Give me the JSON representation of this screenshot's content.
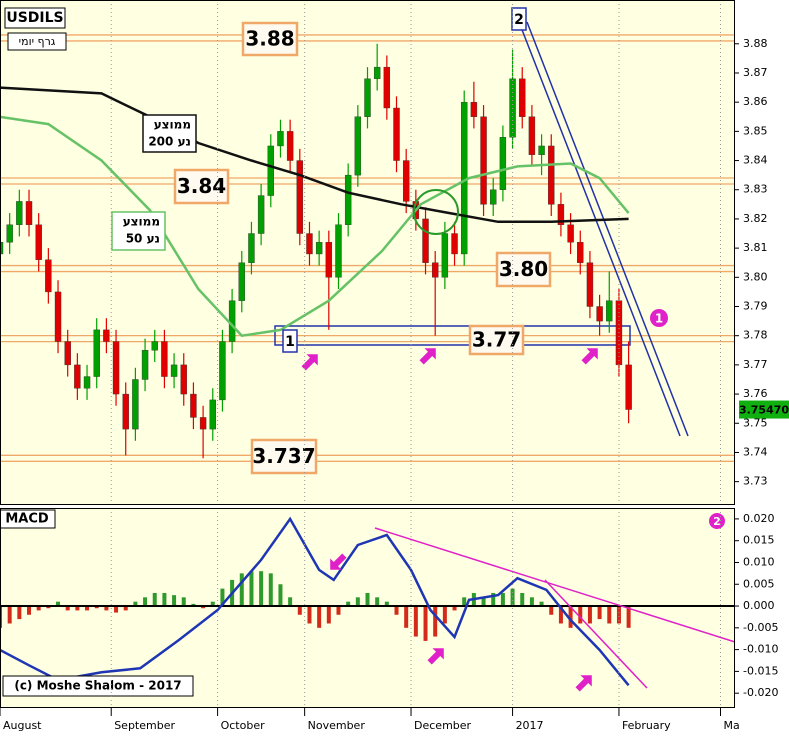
{
  "chart_data": [
    {
      "type": "candlestick",
      "title": "USDILS",
      "subtitle": "גרף יומי",
      "x": [
        0,
        2,
        4,
        6,
        8,
        10,
        12,
        14,
        16,
        18,
        20,
        22,
        24,
        26,
        28,
        30,
        32,
        34,
        36,
        38,
        40,
        42,
        44,
        46,
        48,
        50,
        52,
        54,
        56,
        58,
        60,
        62,
        64,
        66,
        68,
        70,
        72,
        74,
        76,
        78,
        80,
        82,
        84,
        86,
        88,
        90,
        92,
        94,
        96,
        98,
        100,
        102,
        104,
        106,
        108,
        110,
        112,
        114,
        116,
        118,
        120,
        122,
        124,
        126,
        128,
        130
      ],
      "open": [
        3.808,
        3.812,
        3.818,
        3.826,
        3.818,
        3.806,
        3.795,
        3.778,
        3.77,
        3.762,
        3.766,
        3.782,
        3.778,
        3.76,
        3.748,
        3.765,
        3.775,
        3.778,
        3.766,
        3.77,
        3.76,
        3.752,
        3.748,
        3.758,
        3.778,
        3.792,
        3.805,
        3.815,
        3.828,
        3.845,
        3.85,
        3.84,
        3.815,
        3.808,
        3.812,
        3.8,
        3.818,
        3.835,
        3.855,
        3.868,
        3.872,
        3.858,
        3.84,
        3.826,
        3.82,
        3.805,
        3.8,
        3.815,
        3.808,
        3.86,
        3.855,
        3.825,
        3.83,
        3.848,
        3.868,
        3.855,
        3.842,
        3.845,
        3.825,
        3.818,
        3.812,
        3.805,
        3.79,
        3.785,
        3.792,
        3.77
      ],
      "high": [
        3.816,
        3.822,
        3.83,
        3.83,
        3.822,
        3.81,
        3.799,
        3.782,
        3.774,
        3.77,
        3.786,
        3.786,
        3.782,
        3.764,
        3.769,
        3.779,
        3.782,
        3.782,
        3.774,
        3.774,
        3.764,
        3.756,
        3.762,
        3.782,
        3.796,
        3.809,
        3.819,
        3.832,
        3.849,
        3.854,
        3.854,
        3.844,
        3.819,
        3.816,
        3.816,
        3.822,
        3.839,
        3.859,
        3.872,
        3.88,
        3.876,
        3.862,
        3.844,
        3.83,
        3.824,
        3.809,
        3.819,
        3.819,
        3.864,
        3.867,
        3.859,
        3.834,
        3.852,
        3.878,
        3.872,
        3.859,
        3.849,
        3.849,
        3.829,
        3.822,
        3.816,
        3.809,
        3.794,
        3.802,
        3.796,
        3.778
      ],
      "low": [
        3.804,
        3.808,
        3.814,
        3.814,
        3.802,
        3.791,
        3.774,
        3.766,
        3.758,
        3.758,
        3.762,
        3.774,
        3.756,
        3.739,
        3.744,
        3.761,
        3.771,
        3.762,
        3.762,
        3.756,
        3.748,
        3.738,
        3.744,
        3.754,
        3.774,
        3.788,
        3.801,
        3.811,
        3.824,
        3.841,
        3.836,
        3.811,
        3.804,
        3.804,
        3.782,
        3.796,
        3.814,
        3.831,
        3.851,
        3.864,
        3.854,
        3.836,
        3.822,
        3.816,
        3.801,
        3.78,
        3.796,
        3.804,
        3.804,
        3.851,
        3.821,
        3.821,
        3.826,
        3.844,
        3.851,
        3.838,
        3.835,
        3.821,
        3.814,
        3.808,
        3.801,
        3.786,
        3.78,
        3.781,
        3.766,
        3.75
      ],
      "close": [
        3.812,
        3.818,
        3.826,
        3.818,
        3.806,
        3.795,
        3.778,
        3.77,
        3.762,
        3.766,
        3.782,
        3.778,
        3.76,
        3.748,
        3.765,
        3.775,
        3.778,
        3.766,
        3.77,
        3.76,
        3.752,
        3.748,
        3.758,
        3.778,
        3.792,
        3.805,
        3.815,
        3.828,
        3.845,
        3.85,
        3.84,
        3.815,
        3.808,
        3.812,
        3.8,
        3.818,
        3.835,
        3.855,
        3.868,
        3.872,
        3.858,
        3.84,
        3.826,
        3.82,
        3.805,
        3.8,
        3.815,
        3.808,
        3.86,
        3.855,
        3.825,
        3.83,
        3.848,
        3.868,
        3.855,
        3.842,
        3.845,
        3.825,
        3.818,
        3.812,
        3.805,
        3.79,
        3.785,
        3.792,
        3.77,
        3.7547
      ],
      "up_color": "#00a000",
      "down_color": "#e00000",
      "series": [
        {
          "name": [
            "ממוצע",
            "נע 200"
          ],
          "color": "#111111",
          "x": [
            0,
            21,
            31,
            41,
            52,
            62,
            72,
            83,
            93,
            103,
            114,
            130
          ],
          "values": [
            3.865,
            3.863,
            3.855,
            3.846,
            3.84,
            3.835,
            3.829,
            3.825,
            3.822,
            3.819,
            3.819,
            3.82
          ]
        },
        {
          "name": [
            "ממוצע",
            "נע 50"
          ],
          "color": "#66c266",
          "x": [
            0,
            10,
            21,
            31,
            41,
            50,
            58,
            68,
            79,
            87,
            97,
            107,
            118,
            124,
            130
          ],
          "values": [
            3.855,
            3.8525,
            3.84,
            3.823,
            3.796,
            3.78,
            3.782,
            3.792,
            3.809,
            3.825,
            3.834,
            3.838,
            3.839,
            3.834,
            3.822
          ]
        }
      ],
      "levels": [
        3.882,
        3.833,
        3.803,
        3.779,
        3.738
      ],
      "level_color": "#f0a868",
      "annotations": [
        "3.88",
        "3.84",
        "3.80",
        "3.77",
        "3.737",
        "1",
        "2"
      ],
      "callout": "1",
      "last_price": {
        "value": 3.7547,
        "label": "3.75470"
      },
      "xlim": [
        0,
        152
      ],
      "ylim": [
        3.722,
        3.895
      ],
      "yticks": [
        3.73,
        3.74,
        3.75,
        3.76,
        3.77,
        3.78,
        3.79,
        {
          "value": 3.8,
          "label": "3.80"
        },
        3.81,
        3.82,
        3.83,
        3.84,
        3.85,
        3.86,
        3.87,
        3.88
      ]
    },
    {
      "type": "macd",
      "title": "MACD",
      "x": [
        0,
        2,
        4,
        6,
        8,
        10,
        12,
        14,
        16,
        18,
        20,
        22,
        24,
        26,
        28,
        30,
        32,
        34,
        36,
        38,
        40,
        42,
        44,
        46,
        48,
        50,
        52,
        54,
        56,
        58,
        60,
        62,
        64,
        66,
        68,
        70,
        72,
        74,
        76,
        78,
        80,
        82,
        84,
        86,
        88,
        90,
        92,
        94,
        96,
        98,
        100,
        102,
        104,
        106,
        108,
        110,
        112,
        114,
        116,
        118,
        120,
        122,
        124,
        126,
        128,
        130
      ],
      "histogram": [
        -0.005,
        -0.004,
        -0.003,
        -0.002,
        -0.001,
        -0.0005,
        0.001,
        -0.001,
        -0.001,
        -0.001,
        -0.0005,
        -0.001,
        -0.0015,
        -0.001,
        0.001,
        0.002,
        0.003,
        0.003,
        0.0025,
        0.002,
        0.0005,
        -0.0005,
        0.001,
        0.004,
        0.006,
        0.0075,
        0.008,
        0.008,
        0.0075,
        0.005,
        0.002,
        -0.002,
        -0.004,
        -0.005,
        -0.004,
        -0.002,
        0.001,
        0.002,
        0.003,
        0.002,
        0.001,
        -0.002,
        -0.005,
        -0.007,
        -0.008,
        -0.007,
        -0.004,
        -0.001,
        0.002,
        0.003,
        0.002,
        0.003,
        0.003,
        0.004,
        0.003,
        0.002,
        0.001,
        -0.002,
        -0.004,
        -0.005,
        -0.004,
        -0.004,
        -0.003,
        -0.004,
        -0.004,
        -0.005
      ],
      "positive_color": "#2e9a2e",
      "negative_color": "#d42a1a",
      "series": [
        {
          "color": "#1f36b4",
          "x": [
            0,
            6,
            12,
            21,
            29,
            37,
            45,
            54,
            60,
            66,
            69,
            74,
            80,
            85,
            89,
            94,
            97,
            103,
            107,
            113,
            118,
            124,
            130
          ],
          "values": [
            -0.0101,
            -0.0136,
            -0.017,
            -0.0152,
            -0.0143,
            -0.0078,
            -0.0009,
            0.0106,
            0.02,
            0.0083,
            0.006,
            0.014,
            0.0163,
            0.0083,
            -0.0009,
            -0.0071,
            0.0014,
            0.0025,
            0.0064,
            0.0037,
            -0.0032,
            -0.0101,
            -0.0182
          ]
        }
      ],
      "callout": "2",
      "note": "(c) Moshe Shalom - 2017",
      "xlim": [
        0,
        152
      ],
      "ylim": [
        -0.0234,
        0.0225
      ],
      "yticks": [
        {
          "value": 0.02,
          "label": "0.020"
        },
        0.015,
        {
          "value": 0.01,
          "label": "0.010"
        },
        0.005,
        {
          "value": 0,
          "label": "0.000"
        },
        -0.005,
        {
          "value": -0.01,
          "label": "-0.010"
        },
        -0.015,
        {
          "value": -0.02,
          "label": "-0.020"
        }
      ],
      "xticks": [
        {
          "value": 0,
          "label": "August"
        },
        {
          "value": 23,
          "label": "September"
        },
        {
          "value": 45,
          "label": "October"
        },
        {
          "value": 63,
          "label": "November"
        },
        {
          "value": 85,
          "label": "December"
        },
        {
          "value": 106,
          "label": "2017"
        },
        {
          "value": 128,
          "label": "February"
        },
        {
          "value": 149,
          "label": "Ma"
        }
      ]
    }
  ]
}
